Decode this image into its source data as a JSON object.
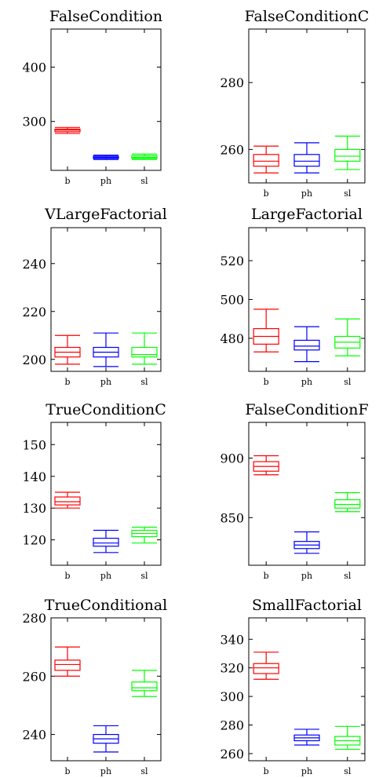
{
  "colors": {
    "b": "#ff0000",
    "ph": "#0000ff",
    "sl": "#00ff00"
  },
  "chart_data": [
    {
      "type": "box",
      "title": "FalseCondition",
      "categories": [
        "b",
        "ph",
        "sl"
      ],
      "yticks": [
        300,
        400
      ],
      "ylim": [
        210,
        470
      ],
      "boxes": [
        {
          "min": 278,
          "q1": 281,
          "median": 284,
          "q3": 286,
          "max": 289
        },
        {
          "min": 230,
          "q1": 232,
          "median": 234,
          "q3": 236,
          "max": 238
        },
        {
          "min": 230,
          "q1": 232,
          "median": 234,
          "q3": 237,
          "max": 240
        }
      ]
    },
    {
      "type": "box",
      "title": "FalseConditionC",
      "categories": [
        "b",
        "ph",
        "sl"
      ],
      "yticks": [
        260,
        280
      ],
      "ylim": [
        250,
        296
      ],
      "boxes": [
        {
          "min": 253,
          "q1": 255,
          "median": 256.5,
          "q3": 258.5,
          "max": 261
        },
        {
          "min": 253,
          "q1": 255,
          "median": 256.5,
          "q3": 258.5,
          "max": 262
        },
        {
          "min": 254,
          "q1": 256.5,
          "median": 258,
          "q3": 260,
          "max": 264
        }
      ]
    },
    {
      "type": "box",
      "title": "VLargeFactorial",
      "categories": [
        "b",
        "ph",
        "sl"
      ],
      "yticks": [
        200,
        220,
        240
      ],
      "ylim": [
        195,
        255
      ],
      "boxes": [
        {
          "min": 198,
          "q1": 201,
          "median": 203,
          "q3": 205,
          "max": 210
        },
        {
          "min": 197,
          "q1": 201,
          "median": 203,
          "q3": 205,
          "max": 211
        },
        {
          "min": 198,
          "q1": 201,
          "median": 202,
          "q3": 205,
          "max": 211
        }
      ]
    },
    {
      "type": "box",
      "title": "LargeFactorial",
      "categories": [
        "b",
        "ph",
        "sl"
      ],
      "yticks": [
        480,
        500,
        520
      ],
      "ylim": [
        463,
        537
      ],
      "boxes": [
        {
          "min": 473,
          "q1": 477,
          "median": 481,
          "q3": 485,
          "max": 495
        },
        {
          "min": 468,
          "q1": 474,
          "median": 476,
          "q3": 479,
          "max": 486
        },
        {
          "min": 471,
          "q1": 475,
          "median": 478,
          "q3": 481,
          "max": 490
        }
      ]
    },
    {
      "type": "box",
      "title": "TrueConditionC",
      "categories": [
        "b",
        "ph",
        "sl"
      ],
      "yticks": [
        120,
        130,
        140,
        150
      ],
      "ylim": [
        112,
        157
      ],
      "boxes": [
        {
          "min": 130,
          "q1": 131,
          "median": 132,
          "q3": 133.5,
          "max": 135
        },
        {
          "min": 116,
          "q1": 118,
          "median": 119,
          "q3": 120.5,
          "max": 123
        },
        {
          "min": 119,
          "q1": 121,
          "median": 122,
          "q3": 123,
          "max": 124
        }
      ]
    },
    {
      "type": "box",
      "title": "FalseConditionF",
      "categories": [
        "b",
        "ph",
        "sl"
      ],
      "yticks": [
        850,
        900
      ],
      "ylim": [
        810,
        930
      ],
      "boxes": [
        {
          "min": 886,
          "q1": 889,
          "median": 893,
          "q3": 897,
          "max": 902
        },
        {
          "min": 820,
          "q1": 824,
          "median": 827,
          "q3": 830,
          "max": 838
        },
        {
          "min": 855,
          "q1": 858,
          "median": 861,
          "q3": 865,
          "max": 871
        }
      ]
    },
    {
      "type": "box",
      "title": "TrueConditional",
      "categories": [
        "b",
        "ph",
        "sl"
      ],
      "yticks": [
        240,
        260,
        280
      ],
      "ylim": [
        231,
        280
      ],
      "boxes": [
        {
          "min": 260,
          "q1": 262,
          "median": 264,
          "q3": 265.5,
          "max": 270
        },
        {
          "min": 234,
          "q1": 237,
          "median": 238.5,
          "q3": 240,
          "max": 243
        },
        {
          "min": 253,
          "q1": 255,
          "median": 256,
          "q3": 258,
          "max": 262
        }
      ]
    },
    {
      "type": "box",
      "title": "SmallFactorial",
      "categories": [
        "b",
        "ph",
        "sl"
      ],
      "yticks": [
        260,
        280,
        300,
        320,
        340
      ],
      "ylim": [
        255,
        355
      ],
      "boxes": [
        {
          "min": 312,
          "q1": 316,
          "median": 320,
          "q3": 323,
          "max": 331
        },
        {
          "min": 266,
          "q1": 269,
          "median": 271,
          "q3": 273,
          "max": 277
        },
        {
          "min": 263,
          "q1": 266,
          "median": 269,
          "q3": 272,
          "max": 279
        }
      ]
    }
  ]
}
